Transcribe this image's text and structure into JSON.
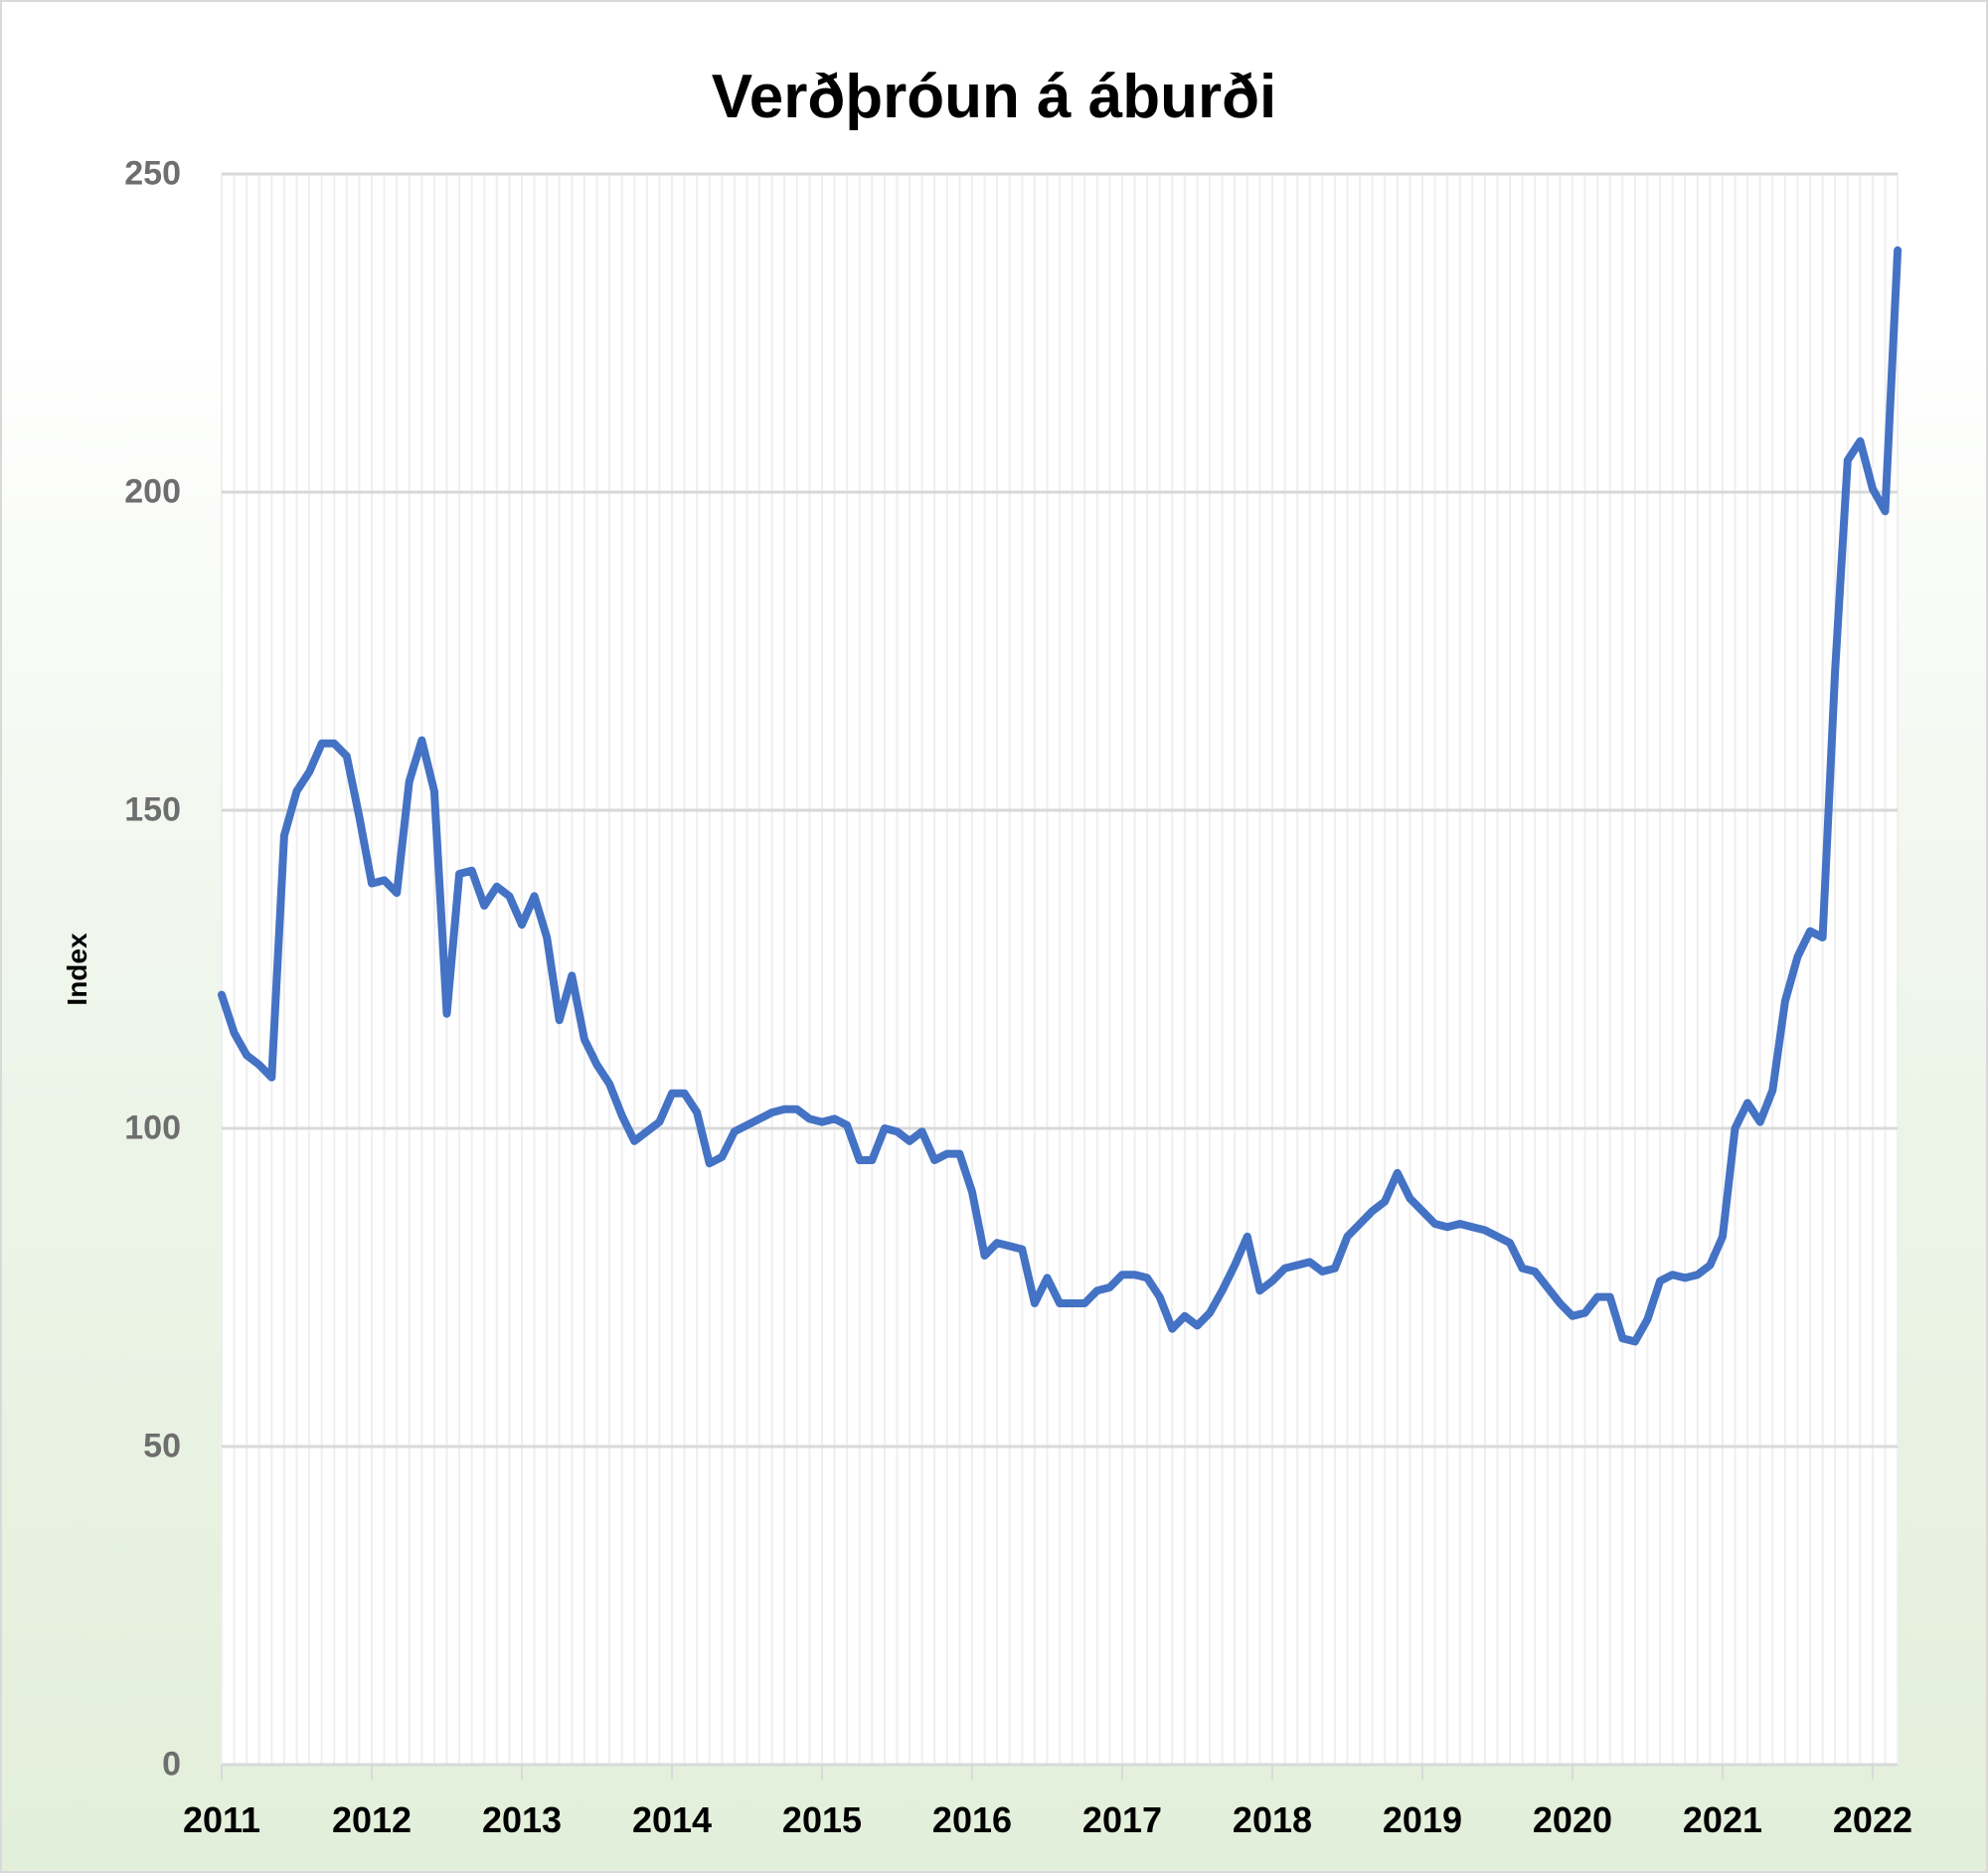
{
  "chart_data": {
    "type": "line",
    "title": "Verðþróun á áburði",
    "xlabel": "",
    "ylabel": "Index",
    "ylim": [
      0,
      250
    ],
    "yticks": [
      0,
      50,
      100,
      150,
      200,
      250
    ],
    "xtick_labels": [
      "2011",
      "2012",
      "2013",
      "2014",
      "2015",
      "2016",
      "2017",
      "2018",
      "2019",
      "2020",
      "2021",
      "2022"
    ],
    "grid": {
      "horizontal": true,
      "vertical_monthly": true
    },
    "legend": null,
    "x_start": "2011-01",
    "x_end": "2022-03",
    "frequency": "monthly",
    "series": [
      {
        "name": "Index",
        "color": "#4472c4",
        "values": [
          121,
          115,
          111.5,
          110,
          108,
          146,
          153,
          156,
          160.5,
          160.5,
          158.5,
          149,
          138.5,
          139,
          137,
          154.5,
          161,
          153,
          118,
          140,
          140.5,
          135,
          138,
          136.5,
          132,
          136.5,
          130,
          117,
          124,
          114,
          110,
          107,
          102,
          98,
          99.5,
          101,
          105.5,
          105.5,
          102.5,
          94.5,
          95.5,
          99.5,
          100.5,
          101.5,
          102.5,
          103,
          103,
          101.5,
          101,
          101.5,
          100.5,
          95,
          95,
          100,
          99.5,
          98,
          99.5,
          95,
          96,
          96,
          90,
          80,
          82,
          81.5,
          81,
          72.5,
          76.5,
          72.5,
          72.5,
          72.5,
          74.5,
          75,
          77,
          77,
          76.5,
          73.5,
          68.5,
          70.5,
          69,
          71,
          74.5,
          78.5,
          83,
          74.5,
          76,
          78,
          78.5,
          79,
          77.5,
          78,
          83,
          85,
          87,
          88.5,
          93,
          89,
          87,
          85,
          84.5,
          85,
          84.5,
          84,
          83,
          82,
          78,
          77.5,
          75,
          72.5,
          70.5,
          71,
          73.5,
          73.5,
          67,
          66.5,
          70,
          76,
          77,
          76.5,
          77,
          78.5,
          83,
          100,
          104,
          101,
          106,
          120,
          127,
          131,
          130,
          172,
          205,
          208,
          200.5,
          197,
          238
        ]
      }
    ]
  },
  "colors": {
    "line": "#4472c4",
    "grid": "#d9d9d9",
    "minor_grid": "#efefef",
    "ytick_text": "#6e6e6e",
    "bg_bottom": "#e2efda"
  }
}
